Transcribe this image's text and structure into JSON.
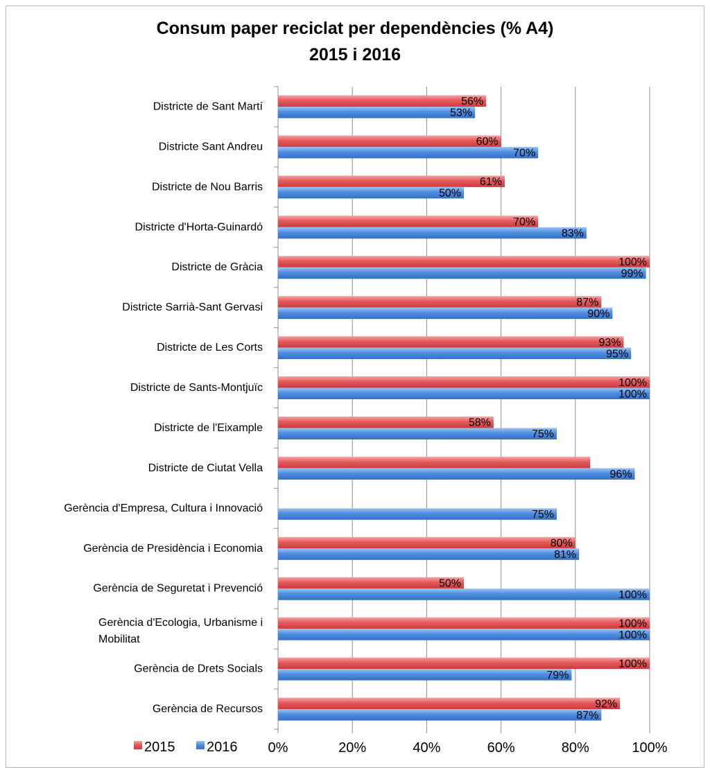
{
  "chart_data": {
    "type": "bar",
    "orientation": "horizontal",
    "title": "Consum paper reciclat per dependències (% A4)",
    "subtitle": "2015 i 2016",
    "categories": [
      "Districte de Sant Martí",
      "Districte Sant Andreu",
      "Districte de Nou Barris",
      "Districte d'Horta-Guinardó",
      "Districte de Gràcia",
      "Districte Sarrià-Sant Gervasi",
      "Districte de Les Corts",
      "Districte de Sants-Montjuïc",
      "Districte de l'Eixample",
      "Districte de Ciutat Vella",
      "Gerència d'Empresa, Cultura i Innovació",
      "Gerència de Presidència i Economia",
      "Gerència de Seguretat i Prevenció",
      "Gerència d'Ecologia, Urbanisme i Mobilitat",
      "Gerència de Drets Socials",
      "Gerència de Recursos"
    ],
    "series": [
      {
        "name": "2015",
        "color": "#e8555a",
        "values": [
          56,
          60,
          61,
          70,
          100,
          87,
          93,
          100,
          58,
          84,
          null,
          80,
          50,
          100,
          100,
          92
        ],
        "labels": [
          "56%",
          "60%",
          "61%",
          "70%",
          "100%",
          "87%",
          "93%",
          "100%",
          "58%",
          "",
          "",
          "80%",
          "50%",
          "100%",
          "100%",
          "92%"
        ]
      },
      {
        "name": "2016",
        "color": "#4f8ee0",
        "values": [
          53,
          70,
          50,
          83,
          99,
          90,
          95,
          100,
          75,
          96,
          75,
          81,
          100,
          100,
          79,
          87
        ],
        "labels": [
          "53%",
          "70%",
          "50%",
          "83%",
          "99%",
          "90%",
          "95%",
          "100%",
          "75%",
          "96%",
          "75%",
          "81%",
          "100%",
          "100%",
          "79%",
          "87%"
        ]
      }
    ],
    "xlim": [
      0,
      100
    ],
    "xticks": [
      0,
      20,
      40,
      60,
      80,
      100
    ],
    "xtick_labels": [
      "0%",
      "20%",
      "40%",
      "60%",
      "80%",
      "100%"
    ],
    "grid": true,
    "legend_position": "bottom-left"
  }
}
